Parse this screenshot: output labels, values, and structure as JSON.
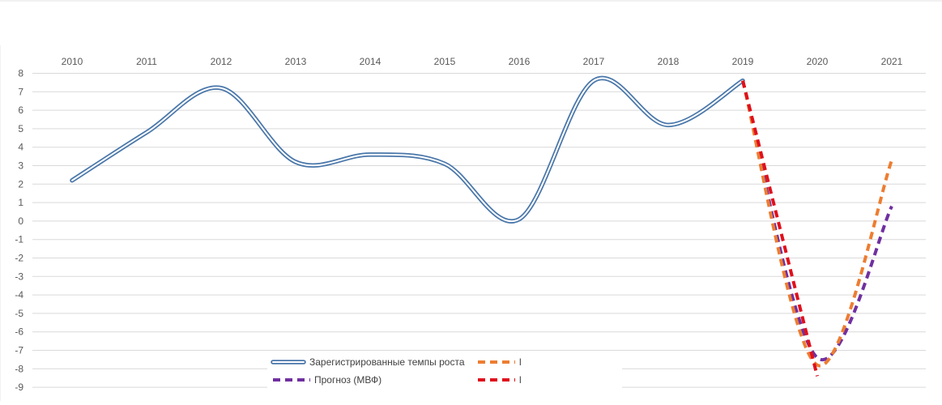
{
  "chart_data": {
    "type": "line",
    "title": "",
    "xlabel": "",
    "ylabel": "",
    "categories": [
      "2010",
      "2011",
      "2012",
      "2013",
      "2014",
      "2015",
      "2016",
      "2017",
      "2018",
      "2019",
      "2020",
      "2021"
    ],
    "y_ticks": [
      "8",
      "7",
      "6",
      "5",
      "4",
      "3",
      "2",
      "1",
      "0",
      "-1",
      "-2",
      "-3",
      "-4",
      "-5",
      "-6",
      "-7",
      "-8",
      "-9"
    ],
    "ylim": [
      -9,
      8
    ],
    "grid": true,
    "smooth": true,
    "legend_position": "bottom-left",
    "series": [
      {
        "name": "Зарегистрированные темпы роста",
        "style": "double",
        "color": "#4a77aa",
        "values": [
          2.2,
          4.8,
          7.2,
          3.2,
          3.6,
          3.1,
          0.1,
          7.6,
          5.2,
          7.6,
          null,
          null
        ]
      },
      {
        "name": "Прогноз (МВФ)",
        "style": "dashed",
        "color": "#7030a0",
        "values": [
          null,
          null,
          null,
          null,
          null,
          null,
          null,
          null,
          null,
          7.6,
          -7.4,
          0.8
        ]
      },
      {
        "name": "",
        "legend_label": "l",
        "style": "dashed",
        "color": "#ed7d31",
        "values": [
          null,
          null,
          null,
          null,
          null,
          null,
          null,
          null,
          null,
          7.6,
          -7.8,
          3.3
        ]
      },
      {
        "name": "",
        "legend_label": "l",
        "style": "dashed",
        "color": "#e0101c",
        "values": [
          null,
          null,
          null,
          null,
          null,
          null,
          null,
          null,
          null,
          7.6,
          -8.4,
          null
        ]
      }
    ]
  }
}
